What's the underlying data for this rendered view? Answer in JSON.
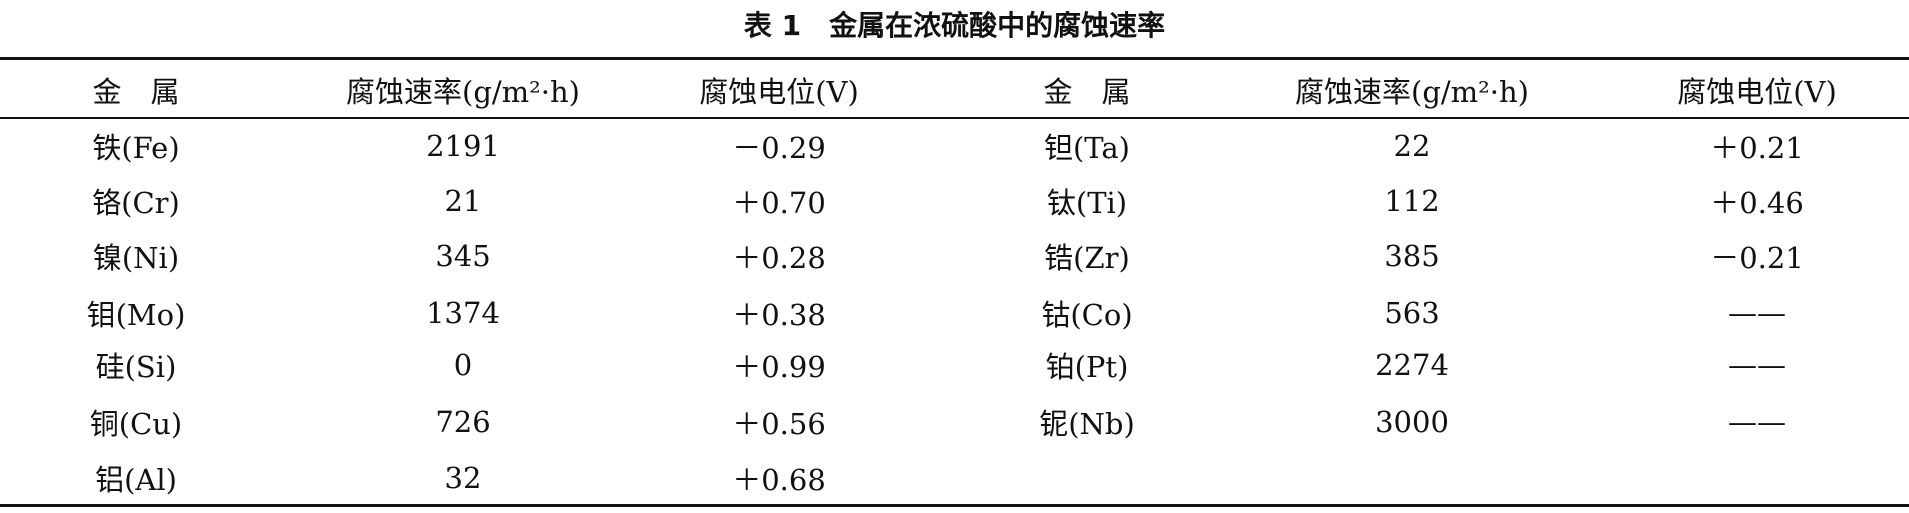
{
  "title": "表 1　金属在浓硫酸中的腐蚀速率",
  "table": {
    "header": [
      "金　属",
      "腐蚀速率(g/m²·h)",
      "腐蚀电位(V)",
      "金　属",
      "腐蚀速率(g/m²·h)",
      "腐蚀电位(V)"
    ],
    "rows": [
      [
        "铁(Fe)",
        "2191",
        "－0.29",
        "钽(Ta)",
        "22",
        "＋0.21"
      ],
      [
        "铬(Cr)",
        "21",
        "＋0.70",
        "钛(Ti)",
        "112",
        "＋0.46"
      ],
      [
        "镍(Ni)",
        "345",
        "＋0.28",
        "锆(Zr)",
        "385",
        "－0.21"
      ],
      [
        "钼(Mo)",
        "1374",
        "＋0.38",
        "钴(Co)",
        "563",
        "——"
      ],
      [
        "硅(Si)",
        "0",
        "＋0.99",
        "铂(Pt)",
        "2274",
        "——"
      ],
      [
        "铜(Cu)",
        "726",
        "＋0.56",
        "铌(Nb)",
        "3000",
        "——"
      ],
      [
        "铝(Al)",
        "32",
        "＋0.68"
      ]
    ]
  }
}
